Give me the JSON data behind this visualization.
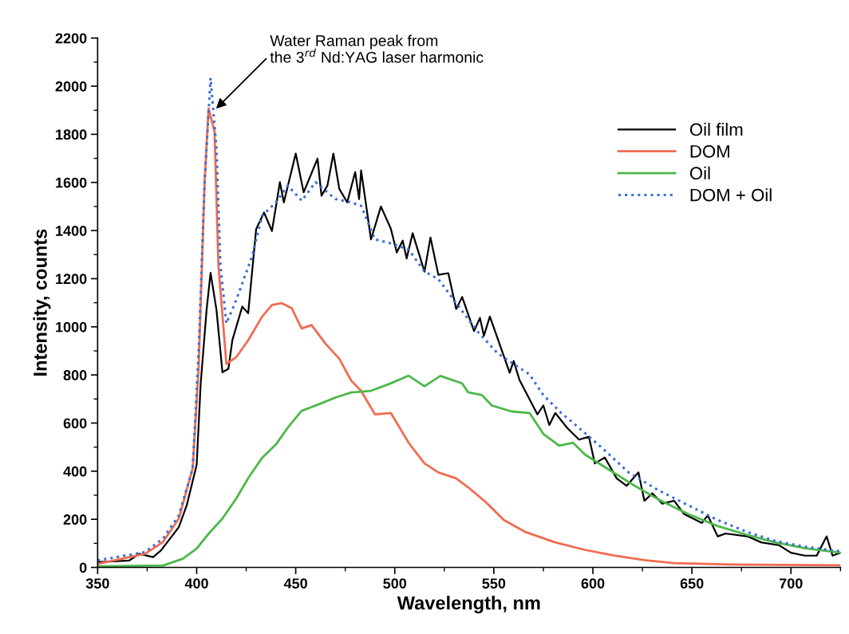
{
  "chart_data": {
    "type": "line",
    "xlabel": "Wavelength, nm",
    "ylabel": "Intensity, counts",
    "xlim": [
      350,
      725
    ],
    "xticks": [
      350,
      400,
      450,
      500,
      550,
      600,
      650,
      700
    ],
    "ylim": [
      0,
      2200
    ],
    "yticks": [
      0,
      200,
      400,
      600,
      800,
      1000,
      1200,
      1400,
      1600,
      1800,
      2000,
      2200
    ],
    "grid": false,
    "legend": "top right",
    "marker": "none",
    "annotations": [
      {
        "text": "Water Raman peak from\nthe 3$^{rd}$ Nd:YAG laser harmonic",
        "x": 409,
        "y": 1900
      }
    ],
    "series": [
      {
        "name": "Oil film",
        "color": "#000000",
        "line_style": "solid",
        "x": [
          350,
          366,
          371,
          378,
          382,
          391,
          395,
          400,
          402,
          405,
          407,
          410,
          413,
          416,
          418,
          423,
          426,
          430,
          434,
          438,
          442,
          444,
          450,
          454,
          461,
          463,
          466,
          469,
          472,
          476,
          480,
          482,
          483,
          488,
          493,
          498,
          501,
          504,
          506,
          509,
          515,
          518,
          522,
          527,
          531,
          534,
          540,
          543,
          545,
          548,
          558,
          560,
          563,
          572,
          575,
          578,
          581,
          587,
          593,
          598,
          601,
          606,
          612,
          617,
          623,
          626,
          630,
          635,
          641,
          646,
          655,
          658,
          663,
          667,
          678,
          685,
          694,
          700,
          707,
          713,
          718,
          721,
          725
        ],
        "values": [
          22,
          29,
          57,
          43,
          71,
          168,
          259,
          427,
          762,
          1070,
          1224,
          1070,
          811,
          825,
          944,
          1084,
          1056,
          1405,
          1475,
          1398,
          1601,
          1517,
          1720,
          1559,
          1699,
          1545,
          1587,
          1720,
          1573,
          1517,
          1643,
          1531,
          1650,
          1363,
          1500,
          1408,
          1309,
          1358,
          1284,
          1389,
          1229,
          1371,
          1216,
          1223,
          1074,
          1124,
          982,
          1037,
          963,
          1043,
          809,
          858,
          778,
          636,
          673,
          592,
          642,
          580,
          531,
          543,
          432,
          457,
          370,
          339,
          395,
          277,
          308,
          265,
          277,
          222,
          185,
          216,
          129,
          141,
          129,
          104,
          92,
          61,
          49,
          49,
          129,
          49,
          61
        ]
      },
      {
        "name": "DOM",
        "color": "#f26b50",
        "line_style": "solid",
        "x": [
          350,
          374,
          383,
          391,
          398,
          401,
          404,
          406,
          409,
          411,
          415,
          420,
          426,
          433,
          438,
          443,
          448,
          453,
          458,
          465,
          472,
          478,
          483,
          490,
          498,
          507,
          515,
          522,
          531,
          537,
          546,
          555,
          566,
          581,
          596,
          611,
          626,
          641,
          670,
          725
        ],
        "values": [
          15,
          57,
          106,
          203,
          413,
          832,
          1601,
          1908,
          1811,
          1252,
          846,
          874,
          944,
          1042,
          1091,
          1098,
          1077,
          993,
          1007,
          930,
          867,
          776,
          734,
          636,
          642,
          518,
          432,
          395,
          370,
          333,
          271,
          197,
          147,
          104,
          73,
          49,
          30,
          18,
          12,
          9
        ]
      },
      {
        "name": "Oil",
        "color": "#4cb848",
        "line_style": "solid",
        "x": [
          350,
          383,
          393,
          400,
          406,
          413,
          420,
          426,
          433,
          440,
          446,
          453,
          462,
          470,
          478,
          488,
          497,
          507,
          515,
          523,
          534,
          537,
          544,
          549,
          559,
          568,
          575,
          583,
          590,
          596,
          608,
          620,
          633,
          648,
          663,
          678,
          692,
          707,
          725
        ],
        "values": [
          5,
          8,
          36,
          78,
          140,
          203,
          287,
          371,
          455,
          511,
          581,
          651,
          679,
          706,
          727,
          734,
          762,
          797,
          753,
          796,
          765,
          728,
          716,
          673,
          648,
          642,
          555,
          506,
          518,
          469,
          407,
          345,
          283,
          222,
          172,
          135,
          104,
          80,
          61
        ]
      },
      {
        "name": "DOM + Oil",
        "color": "#3a6fd8",
        "line_style": "dotted",
        "x": [
          350,
          374,
          383,
          391,
          398,
          401,
          404,
          407,
          410,
          412,
          415,
          420,
          428,
          433,
          440,
          446,
          453,
          460,
          470,
          478,
          483,
          490,
          497,
          507,
          515,
          522,
          531,
          541,
          552,
          561,
          568,
          575,
          584,
          593,
          605,
          618,
          633,
          648,
          663,
          678,
          692,
          707,
          725
        ],
        "values": [
          29,
          64,
          120,
          217,
          413,
          902,
          1601,
          2034,
          1741,
          1252,
          1014,
          1112,
          1294,
          1461,
          1517,
          1587,
          1524,
          1601,
          1531,
          1517,
          1503,
          1363,
          1349,
          1321,
          1230,
          1198,
          1099,
          988,
          889,
          840,
          802,
          716,
          642,
          580,
          494,
          395,
          321,
          259,
          197,
          147,
          110,
          86,
          67
        ]
      }
    ]
  }
}
